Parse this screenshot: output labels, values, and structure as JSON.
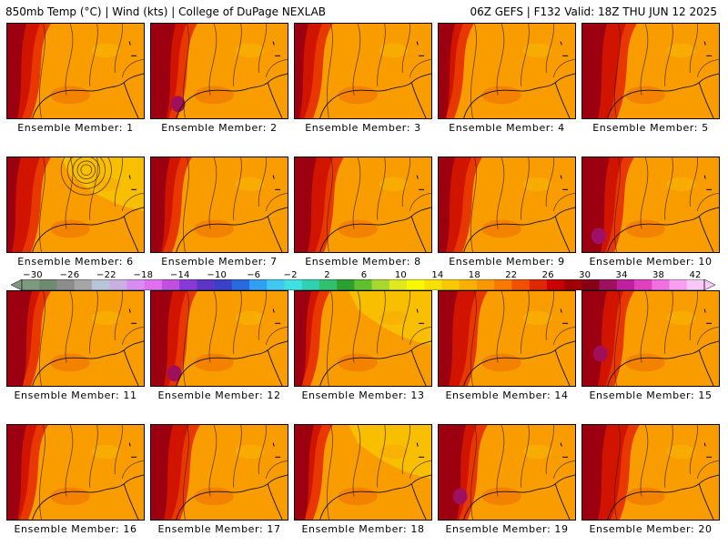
{
  "header": {
    "left": "850mb Temp (°C) | Wind (kts) | College of DuPage NEXLAB",
    "right": "06Z GEFS | F132 Valid: 18Z THU JUN 12 2025"
  },
  "colorbar": {
    "ticks": [
      "−30",
      "−26",
      "−22",
      "−18",
      "−14",
      "−10",
      "−6",
      "−2",
      "2",
      "6",
      "10",
      "14",
      "18",
      "22",
      "26",
      "30",
      "34",
      "38",
      "42"
    ],
    "colors": [
      "#7d9a7f",
      "#6e8a70",
      "#8c8c8c",
      "#a6a6a6",
      "#b8c4d8",
      "#c9b0e0",
      "#d68cf0",
      "#e070f0",
      "#c050e0",
      "#8a38d8",
      "#5e34c8",
      "#3a40c8",
      "#2a6ae0",
      "#30a0f0",
      "#40c8f0",
      "#40e0e0",
      "#30d0b0",
      "#30c070",
      "#2aa030",
      "#60c030",
      "#a8d830",
      "#e0e820",
      "#f8f800",
      "#f8e000",
      "#f8c800",
      "#f8b000",
      "#f89800",
      "#f87800",
      "#f05000",
      "#e02800",
      "#c80000",
      "#a00000",
      "#880018",
      "#a01060",
      "#c020a0",
      "#e040c0",
      "#f070e0",
      "#f8a0f0",
      "#f8c8f8"
    ]
  },
  "members": [
    {
      "label": "Ensemble Member: 1"
    },
    {
      "label": "Ensemble Member: 2"
    },
    {
      "label": "Ensemble Member: 3"
    },
    {
      "label": "Ensemble Member: 4"
    },
    {
      "label": "Ensemble Member: 5"
    },
    {
      "label": "Ensemble Member: 6"
    },
    {
      "label": "Ensemble Member: 7"
    },
    {
      "label": "Ensemble Member: 8"
    },
    {
      "label": "Ensemble Member: 9"
    },
    {
      "label": "Ensemble Member: 10"
    },
    {
      "label": "Ensemble Member: 11"
    },
    {
      "label": "Ensemble Member: 12"
    },
    {
      "label": "Ensemble Member: 13"
    },
    {
      "label": "Ensemble Member: 14"
    },
    {
      "label": "Ensemble Member: 15"
    },
    {
      "label": "Ensemble Member: 16"
    },
    {
      "label": "Ensemble Member: 17"
    },
    {
      "label": "Ensemble Member: 18"
    },
    {
      "label": "Ensemble Member: 19"
    },
    {
      "label": "Ensemble Member: 20"
    }
  ]
}
